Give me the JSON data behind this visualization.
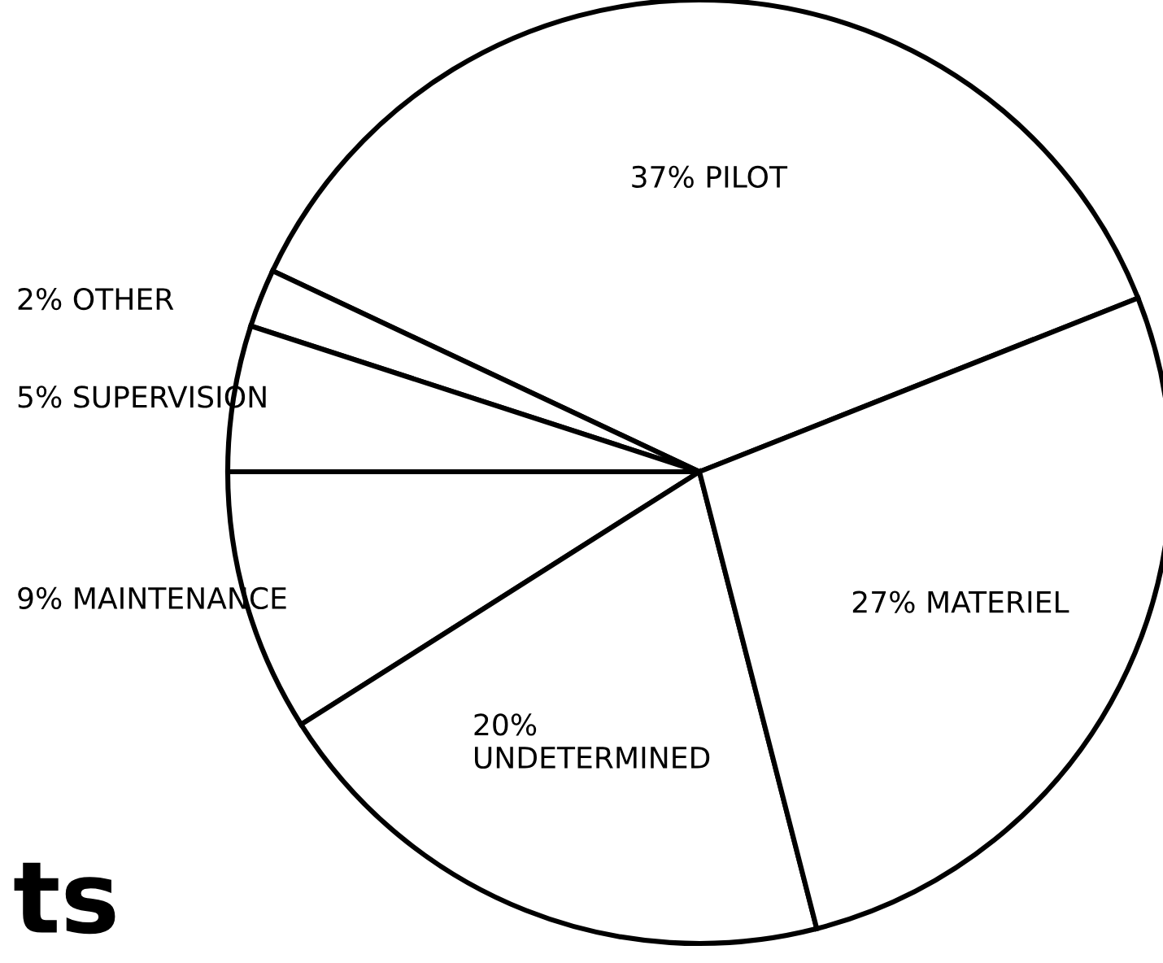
{
  "chart_data": {
    "type": "pie",
    "categories": [
      "PILOT",
      "OTHER",
      "SUPERVISION",
      "MAINTENANCE",
      "UNDETERMINED",
      "MATERIEL"
    ],
    "values": [
      37,
      2,
      5,
      9,
      20,
      27
    ],
    "value_labels": [
      "37%",
      "2%",
      "5%",
      "9%",
      "20%",
      "27%"
    ],
    "colors": [
      "#ffffff",
      "#ffffff",
      "#ffffff",
      "#ffffff",
      "#ffffff",
      "#ffffff"
    ],
    "annotations": [
      "ts"
    ]
  }
}
